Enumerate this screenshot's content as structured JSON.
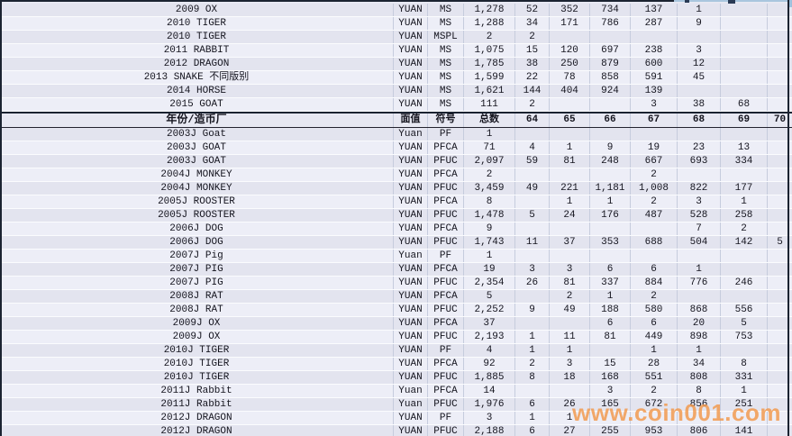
{
  "watermark": "www.coin001.com",
  "colors": {
    "cell_bg_light": "#EDEEF7",
    "cell_bg_dark": "#E3E4EF",
    "gridline_vertical": "#C6CCDD",
    "gridline_horizontal": "#FBFCFE",
    "frame_border": "#1B2331",
    "top_edge_blue": "#A9C6DE",
    "watermark_orange": "#F29749"
  },
  "table": {
    "header": {
      "year_mint": "年份/造币厂",
      "face_value": "面值",
      "symbol": "符号",
      "total": "总数",
      "grades": [
        "64",
        "65",
        "66",
        "67",
        "68",
        "69",
        "70"
      ]
    },
    "ms_section": {
      "rows": [
        {
          "name": "2009 OX",
          "face_value": "YUAN",
          "symbol": "MS",
          "total": "1,278",
          "grades": [
            "52",
            "352",
            "734",
            "137",
            "1",
            "",
            ""
          ]
        },
        {
          "name": "2010 TIGER",
          "face_value": "YUAN",
          "symbol": "MS",
          "total": "1,288",
          "grades": [
            "34",
            "171",
            "786",
            "287",
            "9",
            "",
            ""
          ]
        },
        {
          "name": "2010 TIGER",
          "face_value": "YUAN",
          "symbol": "MSPL",
          "total": "2",
          "grades": [
            "2",
            "",
            "",
            "",
            "",
            "",
            ""
          ]
        },
        {
          "name": "2011 RABBIT",
          "face_value": "YUAN",
          "symbol": "MS",
          "total": "1,075",
          "grades": [
            "15",
            "120",
            "697",
            "238",
            "3",
            "",
            ""
          ]
        },
        {
          "name": "2012 DRAGON",
          "face_value": "YUAN",
          "symbol": "MS",
          "total": "1,785",
          "grades": [
            "38",
            "250",
            "879",
            "600",
            "12",
            "",
            ""
          ]
        },
        {
          "name": "2013 SNAKE 不同版别",
          "face_value": "YUAN",
          "symbol": "MS",
          "total": "1,599",
          "grades": [
            "22",
            "78",
            "858",
            "591",
            "45",
            "",
            ""
          ]
        },
        {
          "name": "2014 HORSE",
          "face_value": "YUAN",
          "symbol": "MS",
          "total": "1,621",
          "grades": [
            "144",
            "404",
            "924",
            "139",
            "",
            "",
            ""
          ]
        },
        {
          "name": "2015 GOAT",
          "face_value": "YUAN",
          "symbol": "MS",
          "total": "111",
          "grades": [
            "2",
            "",
            "",
            "3",
            "38",
            "68",
            ""
          ]
        }
      ]
    },
    "proof_section": {
      "rows": [
        {
          "name": "2003J Goat",
          "face_value": "Yuan",
          "symbol": "PF",
          "total": "1",
          "grades": [
            "",
            "",
            "",
            "",
            "",
            "",
            ""
          ]
        },
        {
          "name": "2003J GOAT",
          "face_value": "YUAN",
          "symbol": "PFCA",
          "total": "71",
          "grades": [
            "4",
            "1",
            "9",
            "19",
            "23",
            "13",
            ""
          ]
        },
        {
          "name": "2003J GOAT",
          "face_value": "YUAN",
          "symbol": "PFUC",
          "total": "2,097",
          "grades": [
            "59",
            "81",
            "248",
            "667",
            "693",
            "334",
            ""
          ]
        },
        {
          "name": "2004J MONKEY",
          "face_value": "YUAN",
          "symbol": "PFCA",
          "total": "2",
          "grades": [
            "",
            "",
            "",
            "2",
            "",
            "",
            ""
          ]
        },
        {
          "name": "2004J MONKEY",
          "face_value": "YUAN",
          "symbol": "PFUC",
          "total": "3,459",
          "grades": [
            "49",
            "221",
            "1,181",
            "1,008",
            "822",
            "177",
            ""
          ]
        },
        {
          "name": "2005J ROOSTER",
          "face_value": "YUAN",
          "symbol": "PFCA",
          "total": "8",
          "grades": [
            "",
            "1",
            "1",
            "2",
            "3",
            "1",
            ""
          ]
        },
        {
          "name": "2005J ROOSTER",
          "face_value": "YUAN",
          "symbol": "PFUC",
          "total": "1,478",
          "grades": [
            "5",
            "24",
            "176",
            "487",
            "528",
            "258",
            ""
          ]
        },
        {
          "name": "2006J DOG",
          "face_value": "YUAN",
          "symbol": "PFCA",
          "total": "9",
          "grades": [
            "",
            "",
            "",
            "",
            "7",
            "2",
            ""
          ]
        },
        {
          "name": "2006J DOG",
          "face_value": "YUAN",
          "symbol": "PFUC",
          "total": "1,743",
          "grades": [
            "11",
            "37",
            "353",
            "688",
            "504",
            "142",
            "5"
          ]
        },
        {
          "name": "2007J Pig",
          "face_value": "Yuan",
          "symbol": "PF",
          "total": "1",
          "grades": [
            "",
            "",
            "",
            "",
            "",
            "",
            ""
          ]
        },
        {
          "name": "2007J PIG",
          "face_value": "YUAN",
          "symbol": "PFCA",
          "total": "19",
          "grades": [
            "3",
            "3",
            "6",
            "6",
            "1",
            "",
            ""
          ]
        },
        {
          "name": "2007J PIG",
          "face_value": "YUAN",
          "symbol": "PFUC",
          "total": "2,354",
          "grades": [
            "26",
            "81",
            "337",
            "884",
            "776",
            "246",
            ""
          ]
        },
        {
          "name": "2008J RAT",
          "face_value": "YUAN",
          "symbol": "PFCA",
          "total": "5",
          "grades": [
            "",
            "2",
            "1",
            "2",
            "",
            "",
            ""
          ]
        },
        {
          "name": "2008J RAT",
          "face_value": "YUAN",
          "symbol": "PFUC",
          "total": "2,252",
          "grades": [
            "9",
            "49",
            "188",
            "580",
            "868",
            "556",
            ""
          ]
        },
        {
          "name": "2009J OX",
          "face_value": "YUAN",
          "symbol": "PFCA",
          "total": "37",
          "grades": [
            "",
            "",
            "6",
            "6",
            "20",
            "5",
            ""
          ]
        },
        {
          "name": "2009J OX",
          "face_value": "YUAN",
          "symbol": "PFUC",
          "total": "2,193",
          "grades": [
            "1",
            "11",
            "81",
            "449",
            "898",
            "753",
            ""
          ]
        },
        {
          "name": "2010J TIGER",
          "face_value": "YUAN",
          "symbol": "PF",
          "total": "4",
          "grades": [
            "1",
            "1",
            "",
            "1",
            "1",
            "",
            ""
          ]
        },
        {
          "name": "2010J TIGER",
          "face_value": "YUAN",
          "symbol": "PFCA",
          "total": "92",
          "grades": [
            "2",
            "3",
            "15",
            "28",
            "34",
            "8",
            ""
          ]
        },
        {
          "name": "2010J TIGER",
          "face_value": "YUAN",
          "symbol": "PFUC",
          "total": "1,885",
          "grades": [
            "8",
            "18",
            "168",
            "551",
            "808",
            "331",
            ""
          ]
        },
        {
          "name": "2011J Rabbit",
          "face_value": "Yuan",
          "symbol": "PFCA",
          "total": "14",
          "grades": [
            "",
            "",
            "3",
            "2",
            "8",
            "1",
            ""
          ]
        },
        {
          "name": "2011J Rabbit",
          "face_value": "Yuan",
          "symbol": "PFUC",
          "total": "1,976",
          "grades": [
            "6",
            "26",
            "165",
            "672",
            "856",
            "251",
            ""
          ]
        },
        {
          "name": "2012J DRAGON",
          "face_value": "YUAN",
          "symbol": "PF",
          "total": "3",
          "grades": [
            "1",
            "1",
            "",
            "",
            "",
            "",
            ""
          ]
        },
        {
          "name": "2012J DRAGON",
          "face_value": "YUAN",
          "symbol": "PFUC",
          "total": "2,188",
          "grades": [
            "6",
            "27",
            "255",
            "953",
            "806",
            "141",
            ""
          ]
        }
      ]
    }
  }
}
